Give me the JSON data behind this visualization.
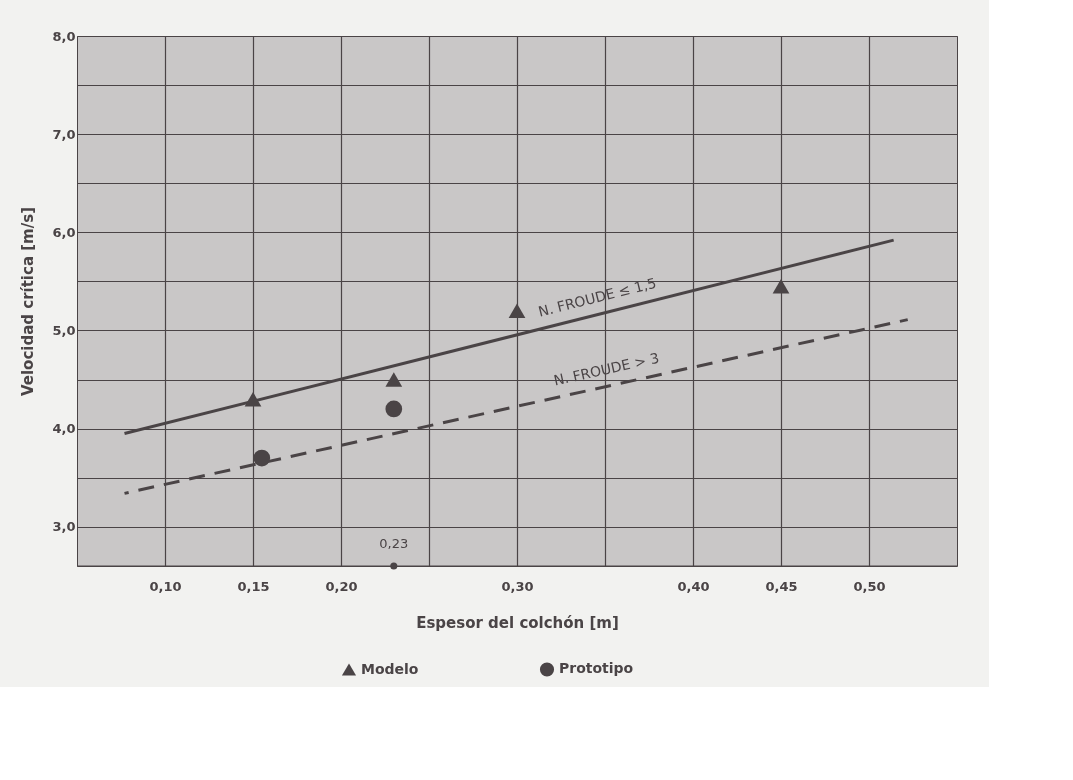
{
  "chart_data": {
    "type": "scatter",
    "xlabel": "Espesor del colchón [m]",
    "ylabel": "Velocidad crítica [m/s]",
    "xlim": [
      0.05,
      0.55
    ],
    "ylim": [
      2.6,
      8.0
    ],
    "xticks": [
      {
        "value": 0.1,
        "label": "0,10"
      },
      {
        "value": 0.15,
        "label": "0,15"
      },
      {
        "value": 0.2,
        "label": "0,20"
      },
      {
        "value": 0.25,
        "label": null
      },
      {
        "value": 0.3,
        "label": "0,30"
      },
      {
        "value": 0.35,
        "label": null
      },
      {
        "value": 0.4,
        "label": "0,40"
      },
      {
        "value": 0.45,
        "label": "0,45"
      },
      {
        "value": 0.5,
        "label": "0,50"
      }
    ],
    "yticks": [
      {
        "value": 3.0,
        "label": "3,0"
      },
      {
        "value": 3.5,
        "label": null
      },
      {
        "value": 4.0,
        "label": "4,0"
      },
      {
        "value": 4.5,
        "label": null
      },
      {
        "value": 5.0,
        "label": "5,0"
      },
      {
        "value": 5.5,
        "label": null
      },
      {
        "value": 6.0,
        "label": "6,0"
      },
      {
        "value": 6.5,
        "label": null
      },
      {
        "value": 7.0,
        "label": "7,0"
      },
      {
        "value": 7.5,
        "label": null
      },
      {
        "value": 8.0,
        "label": "8,0"
      }
    ],
    "grid": true,
    "legend": "bottom",
    "annotations": [
      {
        "text": "0,23",
        "x": 0.23,
        "y": 2.6
      }
    ],
    "series": [
      {
        "name": "Modelo",
        "marker": "triangle",
        "color": "#4a4446",
        "x": [
          0.15,
          0.23,
          0.3,
          0.45
        ],
        "values": [
          4.3,
          4.5,
          5.2,
          5.45
        ]
      },
      {
        "name": "Prototipo",
        "marker": "circle",
        "color": "#4a4446",
        "x": [
          0.155,
          0.23
        ],
        "values": [
          3.7,
          4.2
        ]
      },
      {
        "name": "N. FROUDE ≤ 1,5",
        "type": "line",
        "line_style": "solid",
        "color": "#4a4446",
        "x": [
          0.077,
          0.514
        ],
        "values": [
          3.95,
          5.92
        ]
      },
      {
        "name": "N. FROUDE > 3",
        "type": "line",
        "line_style": "dashed",
        "color": "#4a4446",
        "x": [
          0.077,
          0.522
        ],
        "values": [
          3.34,
          5.11
        ]
      }
    ]
  }
}
